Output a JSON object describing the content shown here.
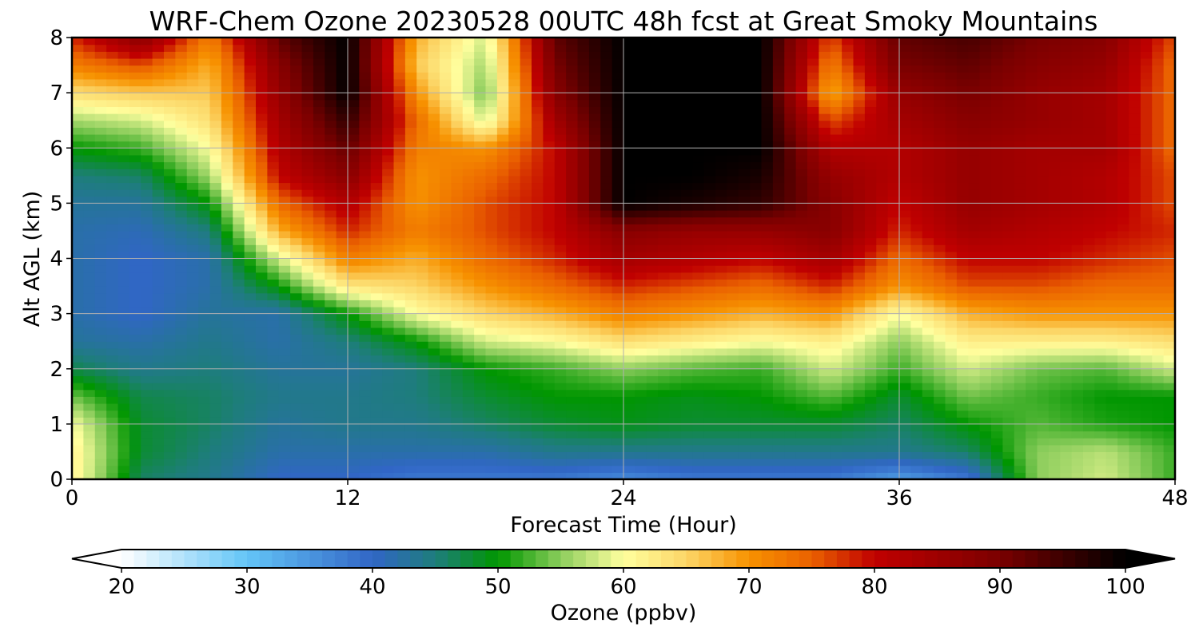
{
  "chart_data": {
    "type": "heatmap",
    "title": "WRF-Chem Ozone  20230528 00UTC 48h fcst at Great Smoky Mountains",
    "xlabel": "Forecast Time (Hour)",
    "ylabel": "Alt AGL (km)",
    "xlim": [
      0,
      48
    ],
    "ylim": [
      0,
      8
    ],
    "x_ticks": [
      0,
      12,
      24,
      36,
      48
    ],
    "y_ticks": [
      0,
      1,
      2,
      3,
      4,
      5,
      6,
      7,
      8
    ],
    "grid": true,
    "forecast_hours": [
      0,
      3,
      6,
      9,
      12,
      15,
      18,
      21,
      24,
      27,
      30,
      33,
      36,
      39,
      42,
      45,
      48
    ],
    "altitudes_km": [
      0,
      0.5,
      1,
      1.5,
      2,
      2.5,
      3,
      3.5,
      4,
      4.5,
      5,
      5.5,
      6,
      6.5,
      7,
      7.5,
      8
    ],
    "ozone_ppbv": [
      [
        62,
        46,
        44,
        40,
        40,
        38,
        38,
        38,
        36,
        38,
        38,
        38,
        34,
        38,
        55,
        58,
        52
      ],
      [
        62,
        48,
        45,
        42,
        42,
        42,
        42,
        44,
        44,
        44,
        44,
        44,
        44,
        46,
        55,
        57,
        52
      ],
      [
        60,
        48,
        46,
        43,
        44,
        44,
        46,
        48,
        49,
        48,
        48,
        48,
        46,
        50,
        53,
        51,
        50
      ],
      [
        54,
        47,
        46,
        44,
        44,
        45,
        48,
        50,
        50,
        49,
        50,
        53,
        48,
        54,
        52,
        50,
        50
      ],
      [
        47,
        44,
        45,
        43,
        43,
        45,
        50,
        52,
        55,
        53,
        52,
        58,
        52,
        58,
        54,
        53,
        58
      ],
      [
        43,
        42,
        44,
        42,
        45,
        50,
        58,
        60,
        64,
        62,
        60,
        62,
        55,
        62,
        62,
        62,
        64
      ],
      [
        42,
        40,
        43,
        42,
        50,
        60,
        65,
        68,
        72,
        70,
        68,
        70,
        60,
        68,
        70,
        70,
        70
      ],
      [
        42,
        40,
        42,
        50,
        63,
        65,
        70,
        74,
        78,
        76,
        74,
        78,
        70,
        76,
        76,
        74,
        74
      ],
      [
        42,
        40,
        42,
        58,
        72,
        68,
        74,
        78,
        84,
        82,
        80,
        84,
        74,
        80,
        80,
        78,
        76
      ],
      [
        42,
        41,
        45,
        68,
        78,
        72,
        76,
        80,
        88,
        86,
        86,
        88,
        78,
        84,
        82,
        80,
        78
      ],
      [
        43,
        43,
        50,
        74,
        82,
        70,
        76,
        80,
        100,
        98,
        96,
        88,
        80,
        86,
        84,
        82,
        76
      ],
      [
        45,
        46,
        56,
        80,
        88,
        70,
        74,
        80,
        100,
        100,
        98,
        86,
        82,
        86,
        84,
        82,
        76
      ],
      [
        50,
        52,
        60,
        82,
        92,
        72,
        70,
        80,
        100,
        100,
        100,
        82,
        82,
        86,
        84,
        84,
        74
      ],
      [
        56,
        58,
        64,
        84,
        96,
        74,
        58,
        84,
        100,
        100,
        100,
        76,
        84,
        88,
        86,
        84,
        74
      ],
      [
        64,
        66,
        66,
        86,
        100,
        70,
        54,
        88,
        100,
        100,
        100,
        68,
        86,
        90,
        86,
        84,
        74
      ],
      [
        72,
        76,
        68,
        88,
        100,
        66,
        56,
        90,
        100,
        100,
        100,
        72,
        90,
        92,
        88,
        86,
        74
      ],
      [
        78,
        88,
        72,
        92,
        100,
        68,
        58,
        92,
        100,
        100,
        100,
        76,
        92,
        94,
        90,
        88,
        76
      ]
    ],
    "colorbar": {
      "label": "Ozone  (ppbv)",
      "min": 20,
      "max": 100,
      "ticks": [
        20,
        30,
        40,
        50,
        60,
        70,
        80,
        90,
        100
      ],
      "extend": "both",
      "color_stops": [
        [
          20,
          "#ffffff"
        ],
        [
          30,
          "#63c5f7"
        ],
        [
          40,
          "#3166c6"
        ],
        [
          45,
          "#1e7d7c"
        ],
        [
          50,
          "#009600"
        ],
        [
          55,
          "#8ccd5c"
        ],
        [
          60,
          "#ffff9f"
        ],
        [
          65,
          "#fcd667"
        ],
        [
          70,
          "#f79200"
        ],
        [
          75,
          "#ea6100"
        ],
        [
          80,
          "#c00000"
        ],
        [
          90,
          "#7a0000"
        ],
        [
          100,
          "#000000"
        ]
      ]
    }
  }
}
